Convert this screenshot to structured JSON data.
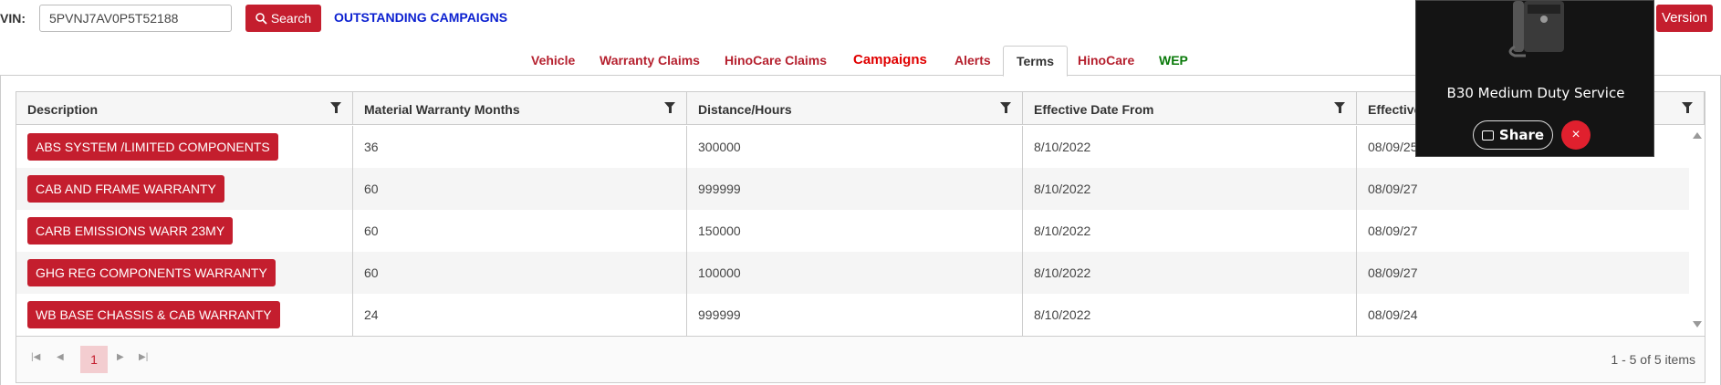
{
  "header": {
    "vin_label": "VIN:",
    "vin_value": "5PVNJ7AV0P5T52188",
    "search_label": "Search",
    "outstanding_link": "OUTSTANDING CAMPAIGNS",
    "version_label": "Version"
  },
  "tabs": [
    {
      "label": "Vehicle",
      "color": "#b5202e"
    },
    {
      "label": "Warranty Claims",
      "color": "#b5202e"
    },
    {
      "label": "HinoCare Claims",
      "color": "#b5202e"
    },
    {
      "label": "Campaigns",
      "color": "#e00000"
    },
    {
      "label": "Alerts",
      "color": "#b5202e"
    },
    {
      "label": "Terms",
      "active": true
    },
    {
      "label": "HinoCare",
      "color": "#b5202e"
    },
    {
      "label": "WEP",
      "color": "#0a7a0a"
    }
  ],
  "grid": {
    "columns": [
      "Description",
      "Material Warranty Months",
      "Distance/Hours",
      "Effective Date From",
      "Effective"
    ],
    "rows": [
      [
        "ABS SYSTEM /LIMITED COMPONENTS",
        "36",
        "300000",
        "8/10/2022",
        "08/09/25"
      ],
      [
        "CAB AND FRAME WARRANTY",
        "60",
        "999999",
        "8/10/2022",
        "08/09/27"
      ],
      [
        "CARB EMISSIONS WARR 23MY",
        "60",
        "150000",
        "8/10/2022",
        "08/09/27"
      ],
      [
        "GHG REG COMPONENTS WARRANTY",
        "60",
        "100000",
        "8/10/2022",
        "08/09/27"
      ],
      [
        "WB BASE CHASSIS & CAB WARRANTY",
        "24",
        "999999",
        "8/10/2022",
        "08/09/24"
      ]
    ],
    "pager": {
      "current_page": "1",
      "info": "1 - 5 of 5 items"
    }
  },
  "popup": {
    "title": "B30 Medium Duty Service",
    "share_label": "Share",
    "close_label": "×"
  },
  "colors": {
    "accent": "#c41e2e",
    "link": "#0a1fd0"
  }
}
